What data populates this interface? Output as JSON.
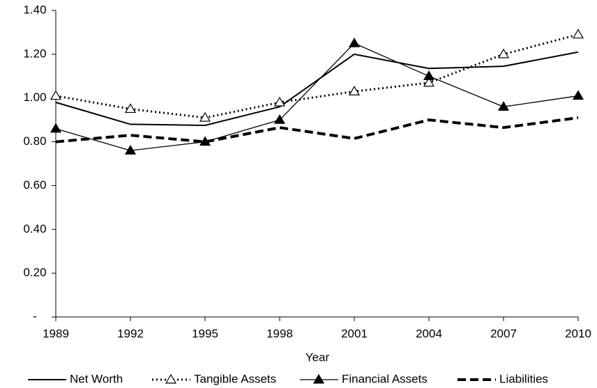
{
  "chart_data": {
    "type": "line",
    "x_label": "Year",
    "categories": [
      "1989",
      "1992",
      "1995",
      "1998",
      "2001",
      "2004",
      "2007",
      "2010"
    ],
    "series": [
      {
        "name": "Net Worth",
        "color": "#000000",
        "dash": "solid",
        "marker": "none",
        "width": 2,
        "values": [
          0.98,
          0.88,
          0.875,
          0.96,
          1.2,
          1.135,
          1.145,
          1.21
        ]
      },
      {
        "name": "Tangible Assets",
        "color": "#000000",
        "dash": "dotted",
        "marker": "triangle-open",
        "width": 3,
        "values": [
          1.01,
          0.95,
          0.91,
          0.98,
          1.03,
          1.07,
          1.2,
          1.29
        ]
      },
      {
        "name": "Financial Assets",
        "color": "#000000",
        "dash": "solid",
        "marker": "triangle-filled",
        "width": 1.3,
        "values": [
          0.86,
          0.76,
          0.8,
          0.9,
          1.25,
          1.1,
          0.96,
          1.01
        ]
      },
      {
        "name": "Liabilities",
        "color": "#000000",
        "dash": "dashed",
        "marker": "none",
        "width": 4,
        "values": [
          0.8,
          0.83,
          0.8,
          0.865,
          0.815,
          0.9,
          0.865,
          0.91
        ]
      }
    ],
    "ylim": [
      0,
      1.4
    ],
    "yticks": [
      {
        "value": 0,
        "label": "-"
      },
      {
        "value": 0.2,
        "label": "0.20"
      },
      {
        "value": 0.4,
        "label": "0.40"
      },
      {
        "value": 0.6,
        "label": "0.60"
      },
      {
        "value": 0.8,
        "label": "0.80"
      },
      {
        "value": 1.0,
        "label": "1.00"
      },
      {
        "value": 1.2,
        "label": "1.20"
      },
      {
        "value": 1.4,
        "label": "1.40"
      }
    ],
    "grid": false,
    "legend": "bottom"
  }
}
